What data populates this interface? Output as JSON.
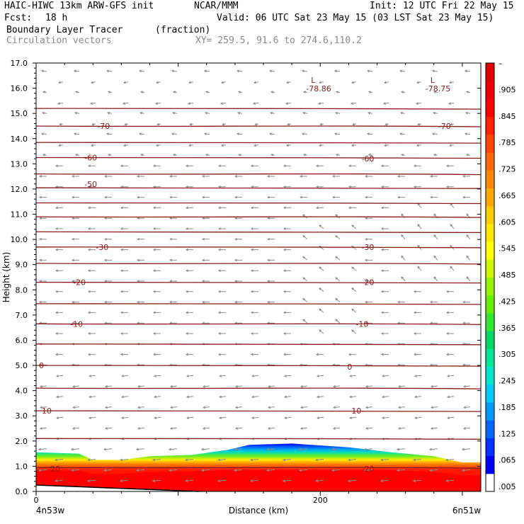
{
  "header": {
    "model": "HAIC-HIWC 13km ARW-GFS init",
    "org": "NCAR/MMM",
    "init": "Init: 12 UTC Fri 22 May 15",
    "fcst_label": "Fcst:",
    "fcst_value": "18 h",
    "valid": "Valid: 06 UTC Sat 23 May 15 (03 LST Sat 23 May 15)",
    "field_name": "Boundary Layer Tracer",
    "field_units": "(fraction)",
    "vector_label": "Circulation vectors",
    "xy_range": "XY= 259.5, 91.6 to 274.6,110.2"
  },
  "chart_data": {
    "type": "heatmap",
    "title": "Boundary Layer Tracer",
    "units": "(fraction)",
    "ylabel": "Height (km)",
    "xlabel": "Distance (km)",
    "xlim": [
      0,
      313
    ],
    "ylim": [
      0,
      17
    ],
    "y_ticks": [
      "0.0",
      "1.0",
      "2.0",
      "3.0",
      "4.0",
      "5.0",
      "6.0",
      "7.0",
      "8.0",
      "9.0",
      "10.0",
      "11.0",
      "12.0",
      "13.0",
      "14.0",
      "15.0",
      "16.0",
      "17.0"
    ],
    "x_tick_values": [
      0,
      200
    ],
    "x_tick_labels": [
      "0",
      "200"
    ],
    "x_end_labels": [
      "4n53w",
      "6n51w"
    ],
    "tracer_top_km": [
      {
        "x": 0,
        "top": 1.55
      },
      {
        "x": 30,
        "top": 1.5
      },
      {
        "x": 40,
        "top": 1.25
      },
      {
        "x": 60,
        "top": 1.25
      },
      {
        "x": 80,
        "top": 1.4
      },
      {
        "x": 110,
        "top": 1.45
      },
      {
        "x": 135,
        "top": 1.65
      },
      {
        "x": 150,
        "top": 1.85
      },
      {
        "x": 180,
        "top": 1.9
      },
      {
        "x": 220,
        "top": 1.75
      },
      {
        "x": 250,
        "top": 1.55
      },
      {
        "x": 280,
        "top": 1.4
      },
      {
        "x": 300,
        "top": 1.15
      },
      {
        "x": 313,
        "top": 1.15
      }
    ],
    "colorbar": {
      "colors": [
        "#ffffff",
        "#0000ff",
        "#0033ff",
        "#0066ff",
        "#0099ff",
        "#00ccff",
        "#00e6cc",
        "#00e699",
        "#00d966",
        "#33e633",
        "#66ee00",
        "#99f200",
        "#ccf500",
        "#ffff00",
        "#ffe600",
        "#ffcc00",
        "#ffaa00",
        "#ff8800",
        "#ff6600",
        "#ff4400",
        "#ff2200",
        "#ff0000",
        "#ee0000",
        "#dd0000"
      ],
      "labels": [
        ".005",
        ".065",
        ".125",
        ".185",
        ".245",
        ".305",
        ".365",
        ".425",
        ".485",
        ".545",
        ".605",
        ".665",
        ".725",
        ".785",
        ".845",
        ".905",
        "–"
      ]
    },
    "contour_levels_c": [
      20,
      10,
      0,
      -10,
      -20,
      -30,
      -50,
      -60,
      -70
    ],
    "contour_label_positions": [
      {
        "value": "20",
        "x": 10,
        "y": 0.9
      },
      {
        "value": "20",
        "x": 231,
        "y": 0.9
      },
      {
        "value": "10",
        "x": 4,
        "y": 3.2
      },
      {
        "value": "10",
        "x": 222,
        "y": 3.2
      },
      {
        "value": "0",
        "x": 2,
        "y": 5.0
      },
      {
        "value": "0",
        "x": 219,
        "y": 4.95
      },
      {
        "value": "-10",
        "x": 24,
        "y": 6.65
      },
      {
        "value": "-10",
        "x": 225,
        "y": 6.65
      },
      {
        "value": "-20",
        "x": 26,
        "y": 8.3
      },
      {
        "value": "-20",
        "x": 229,
        "y": 8.3
      },
      {
        "value": "-30",
        "x": 42,
        "y": 9.7
      },
      {
        "value": "-30",
        "x": 229,
        "y": 9.7
      },
      {
        "value": "-50",
        "x": 34,
        "y": 12.2
      },
      {
        "value": "-60",
        "x": 34,
        "y": 13.25
      },
      {
        "value": "-60",
        "x": 229,
        "y": 13.2
      },
      {
        "value": "-70",
        "x": 43,
        "y": 14.5
      },
      {
        "value": "-70",
        "x": 283,
        "y": 14.5
      }
    ],
    "contour_heights_km": [
      0.95,
      2.1,
      3.2,
      4.1,
      5.0,
      5.85,
      6.65,
      7.45,
      8.3,
      9.05,
      9.7,
      10.3,
      10.9,
      11.45,
      12.05,
      12.6,
      13.25,
      13.85,
      14.5,
      15.2
    ],
    "lows": [
      {
        "symbol": "L",
        "value": "-78.86",
        "x": 196,
        "y": 16.05
      },
      {
        "symbol": "L",
        "value": "-78.75",
        "x": 280,
        "y": 16.05
      }
    ]
  }
}
